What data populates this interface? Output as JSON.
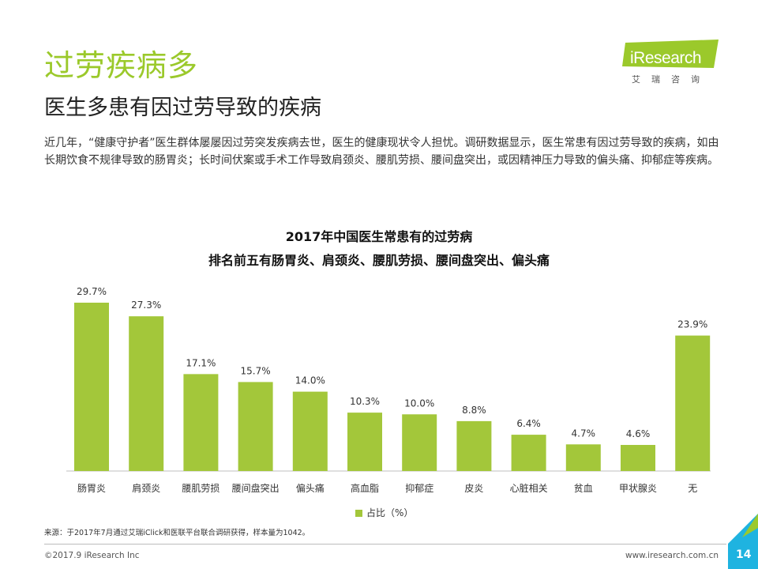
{
  "header": {
    "title": "过劳疾病多",
    "subtitle": "医生多患有因过劳导致的疾病"
  },
  "logo": {
    "text": "iResearch",
    "cn": "艾瑞咨询"
  },
  "intro": "近几年，“健康守护者”医生群体屡屡因过劳突发疾病去世，医生的健康现状令人担忧。调研数据显示，医生常患有因过劳导致的疾病，如由长期饮食不规律导致的肠胃炎；长时间伏案或手术工作导致肩颈炎、腰肌劳损、腰间盘突出，或因精神压力导致的偏头痛、抑郁症等疾病。",
  "chart_data": {
    "type": "bar",
    "title": "2017年中国医生常患有的过劳病",
    "subtitle": "排名前五有肠胃炎、肩颈炎、腰肌劳损、腰间盘突出、偏头痛",
    "categories": [
      "肠胃炎",
      "肩颈炎",
      "腰肌劳损",
      "腰间盘突出",
      "偏头痛",
      "高血脂",
      "抑郁症",
      "皮炎",
      "心脏相关",
      "贫血",
      "甲状腺炎",
      "无"
    ],
    "series": [
      {
        "name": "占比（%）",
        "values": [
          29.7,
          27.3,
          17.1,
          15.7,
          14.0,
          10.3,
          10.0,
          8.8,
          6.4,
          4.7,
          4.6,
          23.9
        ],
        "labels": [
          "29.7%",
          "27.3%",
          "17.1%",
          "15.7%",
          "14.0%",
          "10.3%",
          "10.0%",
          "8.8%",
          "6.4%",
          "4.7%",
          "4.6%",
          "23.9%"
        ],
        "color": "#a3c73a"
      }
    ],
    "xlabel": "",
    "ylabel": "",
    "ylim": [
      0,
      30
    ],
    "grid": false,
    "legend_position": "bottom"
  },
  "legend": {
    "label": "占比（%）"
  },
  "source": "来源：于2017年7月通过艾瑞iClick和医联平台联合调研获得，样本量为1042。",
  "footer": {
    "copyright": "©2017.9 iResearch Inc",
    "website": "www.iresearch.com.cn",
    "page": "14"
  },
  "colors": {
    "accent": "#9bc92b",
    "bar": "#a3c73a",
    "corner_blue": "#1fb3e0",
    "corner_green": "#9bc92b"
  }
}
